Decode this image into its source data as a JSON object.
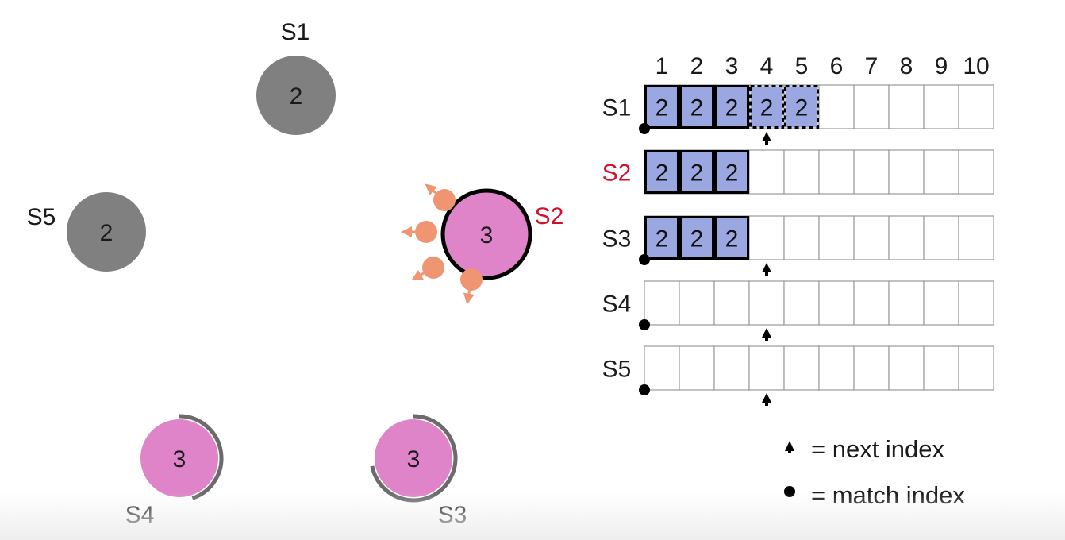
{
  "colors": {
    "follower": "#808080",
    "leader": "#e084c9",
    "entry_fill": "#9aa7e1",
    "leader_label": "#d0112b",
    "message": "#ef9572",
    "timer_arc": "#6b6b6b"
  },
  "servers": [
    {
      "id": "S1",
      "term": "2",
      "state": "follower"
    },
    {
      "id": "S2",
      "term": "3",
      "state": "leader"
    },
    {
      "id": "S3",
      "term": "3",
      "state": "candidate",
      "timer_fraction": 0.72
    },
    {
      "id": "S4",
      "term": "3",
      "state": "candidate",
      "timer_fraction": 0.45
    },
    {
      "id": "S5",
      "term": "2",
      "state": "follower"
    }
  ],
  "log": {
    "indices": [
      "1",
      "2",
      "3",
      "4",
      "5",
      "6",
      "7",
      "8",
      "9",
      "10"
    ],
    "rows": [
      {
        "server": "S1",
        "entries": [
          "2",
          "2",
          "2",
          "2",
          "2"
        ],
        "uncommitted_from": 4,
        "next_index": 4,
        "match_index": 0
      },
      {
        "server": "S2",
        "entries": [
          "2",
          "2",
          "2"
        ],
        "is_leader": true
      },
      {
        "server": "S3",
        "entries": [
          "2",
          "2",
          "2"
        ],
        "next_index": 4,
        "match_index": 0
      },
      {
        "server": "S4",
        "entries": [],
        "next_index": 4,
        "match_index": 0
      },
      {
        "server": "S5",
        "entries": [],
        "next_index": 4,
        "match_index": 0
      }
    ]
  },
  "legend": {
    "next_index": "= next index",
    "match_index": "= match index"
  },
  "icons": {
    "next_index": "up-arrow-icon",
    "match_index": "dot-icon",
    "message": "rpc-message-icon"
  }
}
